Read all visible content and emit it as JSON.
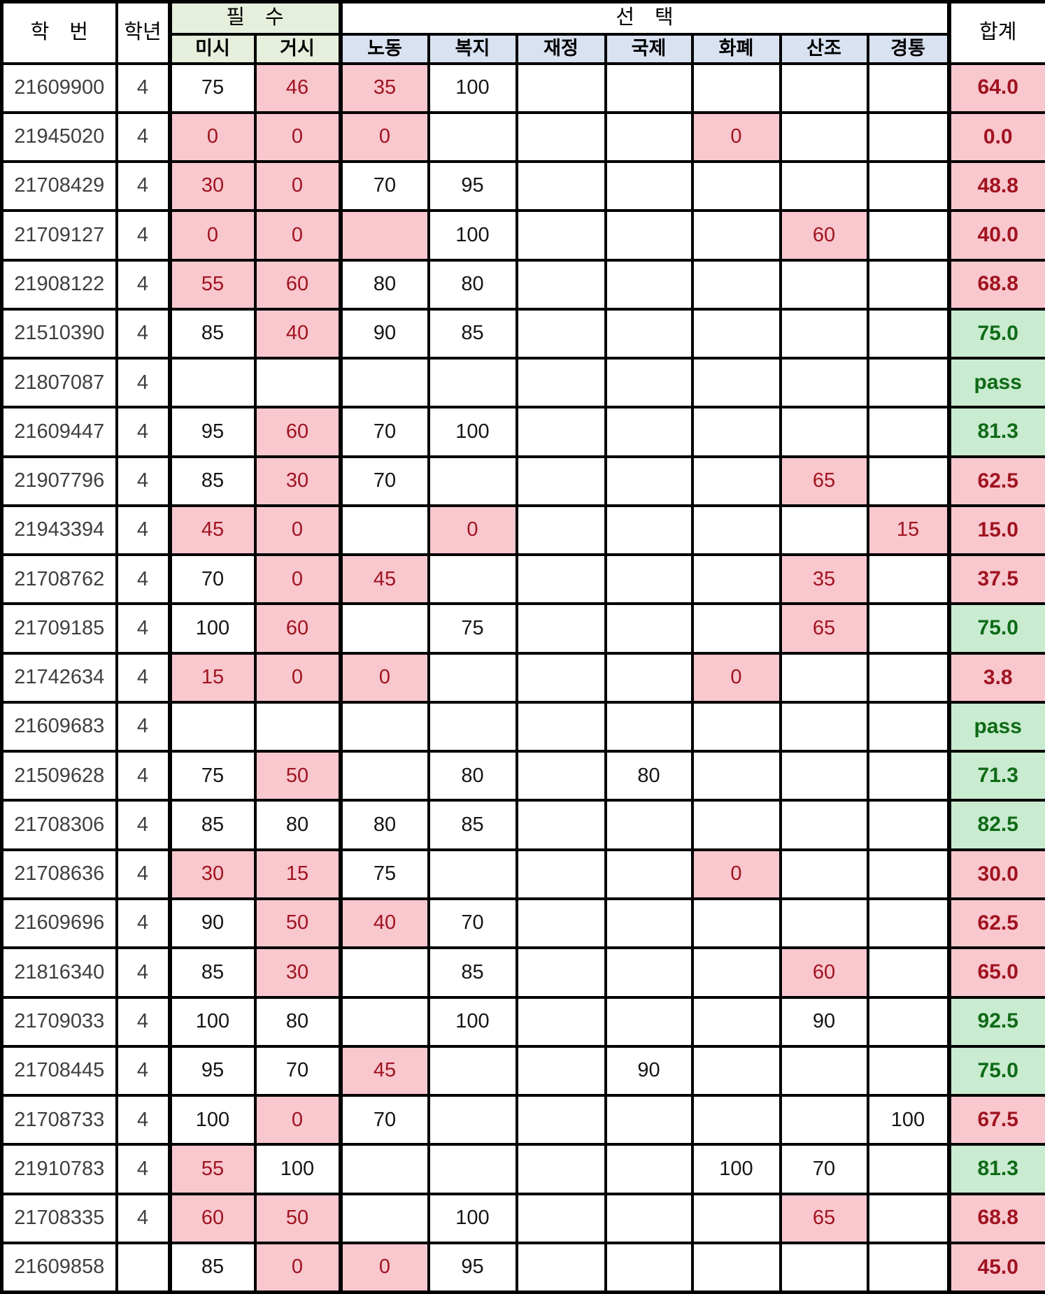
{
  "header": {
    "student_id": "학　번",
    "year": "학년",
    "required_group": "필　수",
    "elective_group": "선　택",
    "required_cols": [
      "미시",
      "거시"
    ],
    "elective_cols": [
      "노동",
      "복지",
      "재정",
      "국제",
      "화폐",
      "산조",
      "경통"
    ],
    "total": "합계"
  },
  "col_keys": [
    "micro",
    "macro",
    "labor",
    "welfare",
    "finance",
    "international",
    "monetary",
    "industrial-org",
    "econ-stats"
  ],
  "colors": {
    "highlight_fill": "#F9C7CE",
    "highlight_text": "#A01320",
    "pass_fill": "#C9EBCF",
    "pass_text": "#0E6A17",
    "required_header_fill": "#E5EFDC",
    "elective_header_fill": "#D9E2F1",
    "grid": "#000000"
  },
  "rows": [
    {
      "id": "21609900",
      "year": "4",
      "scores": [
        {
          "v": "75"
        },
        {
          "v": "46",
          "hl": true
        },
        {
          "v": "35",
          "hl": true
        },
        {
          "v": "100"
        },
        null,
        null,
        null,
        null,
        null
      ],
      "total": {
        "v": "64.0",
        "status": "fail"
      }
    },
    {
      "id": "21945020",
      "year": "4",
      "scores": [
        {
          "v": "0",
          "hl": true
        },
        {
          "v": "0",
          "hl": true
        },
        {
          "v": "0",
          "hl": true
        },
        null,
        null,
        null,
        {
          "v": "0",
          "hl": true
        },
        null,
        null
      ],
      "total": {
        "v": "0.0",
        "status": "fail"
      }
    },
    {
      "id": "21708429",
      "year": "4",
      "scores": [
        {
          "v": "30",
          "hl": true
        },
        {
          "v": "0",
          "hl": true
        },
        {
          "v": "70"
        },
        {
          "v": "95"
        },
        null,
        null,
        null,
        null,
        null
      ],
      "total": {
        "v": "48.8",
        "status": "fail"
      }
    },
    {
      "id": "21709127",
      "year": "4",
      "scores": [
        {
          "v": "0",
          "hl": true
        },
        {
          "v": "0",
          "hl": true
        },
        {
          "v": "",
          "hl": true
        },
        {
          "v": "100"
        },
        null,
        null,
        null,
        {
          "v": "60",
          "hl": true
        },
        null
      ],
      "total": {
        "v": "40.0",
        "status": "fail"
      }
    },
    {
      "id": "21908122",
      "year": "4",
      "scores": [
        {
          "v": "55",
          "hl": true
        },
        {
          "v": "60",
          "hl": true
        },
        {
          "v": "80"
        },
        {
          "v": "80"
        },
        null,
        null,
        null,
        null,
        null
      ],
      "total": {
        "v": "68.8",
        "status": "fail"
      }
    },
    {
      "id": "21510390",
      "year": "4",
      "scores": [
        {
          "v": "85"
        },
        {
          "v": "40",
          "hl": true
        },
        {
          "v": "90"
        },
        {
          "v": "85"
        },
        null,
        null,
        null,
        null,
        null
      ],
      "total": {
        "v": "75.0",
        "status": "pass"
      }
    },
    {
      "id": "21807087",
      "year": "4",
      "scores": [
        null,
        null,
        null,
        null,
        null,
        null,
        null,
        null,
        null
      ],
      "total": {
        "v": "pass",
        "status": "pass"
      }
    },
    {
      "id": "21609447",
      "year": "4",
      "scores": [
        {
          "v": "95"
        },
        {
          "v": "60",
          "hl": true
        },
        {
          "v": "70"
        },
        {
          "v": "100"
        },
        null,
        null,
        null,
        null,
        null
      ],
      "total": {
        "v": "81.3",
        "status": "pass"
      }
    },
    {
      "id": "21907796",
      "year": "4",
      "scores": [
        {
          "v": "85"
        },
        {
          "v": "30",
          "hl": true
        },
        {
          "v": "70"
        },
        null,
        null,
        null,
        null,
        {
          "v": "65",
          "hl": true
        },
        null
      ],
      "total": {
        "v": "62.5",
        "status": "fail"
      }
    },
    {
      "id": "21943394",
      "year": "4",
      "scores": [
        {
          "v": "45",
          "hl": true
        },
        {
          "v": "0",
          "hl": true
        },
        null,
        {
          "v": "0",
          "hl": true
        },
        null,
        null,
        null,
        null,
        {
          "v": "15",
          "hl": true
        }
      ],
      "total": {
        "v": "15.0",
        "status": "fail"
      }
    },
    {
      "id": "21708762",
      "year": "4",
      "scores": [
        {
          "v": "70"
        },
        {
          "v": "0",
          "hl": true
        },
        {
          "v": "45",
          "hl": true
        },
        null,
        null,
        null,
        null,
        {
          "v": "35",
          "hl": true
        },
        null
      ],
      "total": {
        "v": "37.5",
        "status": "fail"
      }
    },
    {
      "id": "21709185",
      "year": "4",
      "scores": [
        {
          "v": "100"
        },
        {
          "v": "60",
          "hl": true
        },
        null,
        {
          "v": "75"
        },
        null,
        null,
        null,
        {
          "v": "65",
          "hl": true
        },
        null
      ],
      "total": {
        "v": "75.0",
        "status": "pass"
      }
    },
    {
      "id": "21742634",
      "year": "4",
      "scores": [
        {
          "v": "15",
          "hl": true
        },
        {
          "v": "0",
          "hl": true
        },
        {
          "v": "0",
          "hl": true
        },
        null,
        null,
        null,
        {
          "v": "0",
          "hl": true
        },
        null,
        null
      ],
      "total": {
        "v": "3.8",
        "status": "fail"
      }
    },
    {
      "id": "21609683",
      "year": "4",
      "scores": [
        null,
        null,
        null,
        null,
        null,
        null,
        null,
        null,
        null
      ],
      "total": {
        "v": "pass",
        "status": "pass"
      }
    },
    {
      "id": "21509628",
      "year": "4",
      "scores": [
        {
          "v": "75"
        },
        {
          "v": "50",
          "hl": true
        },
        null,
        {
          "v": "80"
        },
        null,
        {
          "v": "80"
        },
        null,
        null,
        null
      ],
      "total": {
        "v": "71.3",
        "status": "pass"
      }
    },
    {
      "id": "21708306",
      "year": "4",
      "scores": [
        {
          "v": "85"
        },
        {
          "v": "80"
        },
        {
          "v": "80"
        },
        {
          "v": "85"
        },
        null,
        null,
        null,
        null,
        null
      ],
      "total": {
        "v": "82.5",
        "status": "pass"
      }
    },
    {
      "id": "21708636",
      "year": "4",
      "scores": [
        {
          "v": "30",
          "hl": true
        },
        {
          "v": "15",
          "hl": true
        },
        {
          "v": "75"
        },
        null,
        null,
        null,
        {
          "v": "0",
          "hl": true
        },
        null,
        null
      ],
      "total": {
        "v": "30.0",
        "status": "fail"
      }
    },
    {
      "id": "21609696",
      "year": "4",
      "scores": [
        {
          "v": "90"
        },
        {
          "v": "50",
          "hl": true
        },
        {
          "v": "40",
          "hl": true
        },
        {
          "v": "70"
        },
        null,
        null,
        null,
        null,
        null
      ],
      "total": {
        "v": "62.5",
        "status": "fail"
      }
    },
    {
      "id": "21816340",
      "year": "4",
      "scores": [
        {
          "v": "85"
        },
        {
          "v": "30",
          "hl": true
        },
        null,
        {
          "v": "85"
        },
        null,
        null,
        null,
        {
          "v": "60",
          "hl": true
        },
        null
      ],
      "total": {
        "v": "65.0",
        "status": "fail"
      }
    },
    {
      "id": "21709033",
      "year": "4",
      "scores": [
        {
          "v": "100"
        },
        {
          "v": "80"
        },
        null,
        {
          "v": "100"
        },
        null,
        null,
        null,
        {
          "v": "90"
        },
        null
      ],
      "total": {
        "v": "92.5",
        "status": "pass"
      }
    },
    {
      "id": "21708445",
      "year": "4",
      "scores": [
        {
          "v": "95"
        },
        {
          "v": "70"
        },
        {
          "v": "45",
          "hl": true
        },
        null,
        null,
        {
          "v": "90"
        },
        null,
        null,
        null
      ],
      "total": {
        "v": "75.0",
        "status": "pass"
      }
    },
    {
      "id": "21708733",
      "year": "4",
      "scores": [
        {
          "v": "100"
        },
        {
          "v": "0",
          "hl": true
        },
        {
          "v": "70"
        },
        null,
        null,
        null,
        null,
        null,
        {
          "v": "100"
        }
      ],
      "total": {
        "v": "67.5",
        "status": "fail"
      }
    },
    {
      "id": "21910783",
      "year": "4",
      "scores": [
        {
          "v": "55",
          "hl": true
        },
        {
          "v": "100"
        },
        null,
        null,
        null,
        null,
        {
          "v": "100"
        },
        {
          "v": "70"
        },
        null
      ],
      "total": {
        "v": "81.3",
        "status": "pass"
      }
    },
    {
      "id": "21708335",
      "year": "4",
      "scores": [
        {
          "v": "60",
          "hl": true
        },
        {
          "v": "50",
          "hl": true
        },
        null,
        {
          "v": "100"
        },
        null,
        null,
        null,
        {
          "v": "65",
          "hl": true
        },
        null
      ],
      "total": {
        "v": "68.8",
        "status": "fail"
      }
    },
    {
      "id": "21609858",
      "year": "",
      "scores": [
        {
          "v": "85"
        },
        {
          "v": "0",
          "hl": true
        },
        {
          "v": "0",
          "hl": true
        },
        {
          "v": "95"
        },
        null,
        null,
        null,
        null,
        null
      ],
      "total": {
        "v": "45.0",
        "status": "fail"
      }
    }
  ]
}
